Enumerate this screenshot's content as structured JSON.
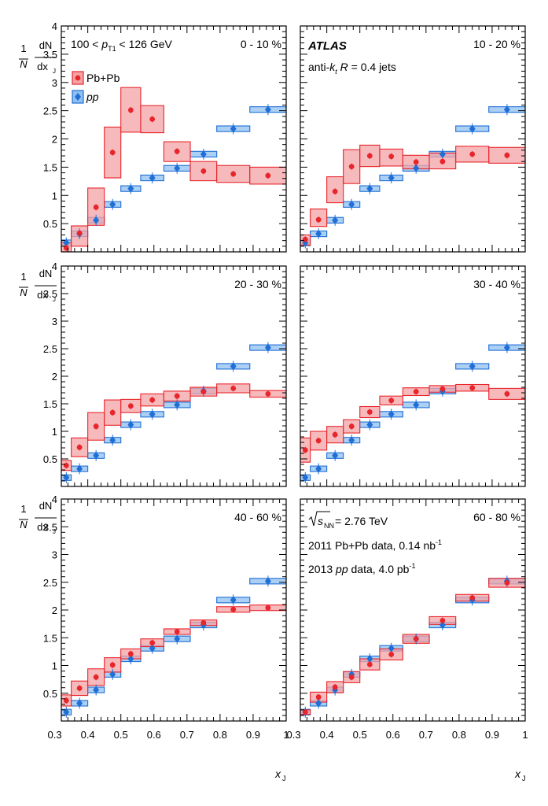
{
  "figure": {
    "ylabel": {
      "one": "1",
      "N": "N",
      "dN": "dN",
      "dx": "dx",
      "sub": "J"
    },
    "xlabel": {
      "x": "x",
      "sub": "J"
    },
    "legend": {
      "pbpb": "Pb+Pb",
      "pp": "pp"
    },
    "kinematic_label": {
      "pre": "100 < ",
      "p": "p",
      "sub": "T1",
      "post": " < 126 GeV"
    },
    "atlas_label": "ATLAS",
    "jet_label": {
      "pre": "anti-",
      "k": "k",
      "ksub": "t",
      "R": "R",
      "post": " = 0.4 jets"
    },
    "energy_label": {
      "s": "s",
      "sub": "NN",
      "post": " = 2.76 TeV"
    },
    "pbpb_data_label": {
      "text": "2011 Pb+Pb data, 0.14 nb",
      "sup": "-1"
    },
    "pp_data_label": {
      "pre": "2013 ",
      "pp": "pp",
      "post": " data, 4.0 pb",
      "sup": "-1"
    }
  },
  "colors": {
    "pbpb": "#e8252b",
    "pbpb_fill": "#f4a3a6",
    "pp": "#1f6fd6",
    "pp_fill": "#8fc0f0"
  },
  "chart_data": {
    "type": "scatter",
    "xlabel": "x_J",
    "ylabel": "(1/N) dN/dx_J",
    "xlim": [
      0.32,
      1.0
    ],
    "ylim": [
      0,
      4
    ],
    "xticks": [
      "0.3",
      "0.4",
      "0.5",
      "0.6",
      "0.7",
      "0.8",
      "0.9",
      "1"
    ],
    "yticks": [
      "0.5",
      "1",
      "1.5",
      "2",
      "2.5",
      "3",
      "3.5",
      "4"
    ],
    "bins": [
      [
        0.32,
        0.35
      ],
      [
        0.35,
        0.4
      ],
      [
        0.4,
        0.45
      ],
      [
        0.45,
        0.5
      ],
      [
        0.5,
        0.56
      ],
      [
        0.56,
        0.63
      ],
      [
        0.63,
        0.71
      ],
      [
        0.71,
        0.79
      ],
      [
        0.79,
        0.89
      ],
      [
        0.89,
        1.0
      ]
    ],
    "x_centers": [
      0.335,
      0.375,
      0.425,
      0.475,
      0.53,
      0.595,
      0.67,
      0.75,
      0.84,
      0.945
    ],
    "pp": {
      "name": "pp",
      "values": [
        0.16,
        0.32,
        0.56,
        0.84,
        1.12,
        1.31,
        1.48,
        1.73,
        2.18,
        2.52
      ],
      "syst": [
        0.05,
        0.05,
        0.05,
        0.05,
        0.05,
        0.05,
        0.05,
        0.05,
        0.05,
        0.05
      ]
    },
    "panels": [
      {
        "centrality": "0 - 10 %",
        "series": [
          {
            "name": "Pb+Pb",
            "values": [
              0.07,
              0.33,
              0.79,
              1.76,
              2.51,
              2.35,
              1.78,
              1.43,
              1.38,
              1.35
            ],
            "syst_low": [
              0.0,
              0.1,
              0.47,
              1.31,
              2.12,
              2.11,
              1.6,
              1.26,
              1.23,
              1.2
            ],
            "syst_high": [
              0.16,
              0.46,
              1.13,
              2.21,
              2.91,
              2.59,
              1.95,
              1.6,
              1.53,
              1.5
            ]
          }
        ]
      },
      {
        "centrality": "10 - 20 %",
        "series": [
          {
            "name": "Pb+Pb",
            "values": [
              0.22,
              0.57,
              1.07,
              1.51,
              1.7,
              1.69,
              1.59,
              1.6,
              1.73,
              1.71
            ],
            "syst_low": [
              0.12,
              0.45,
              0.87,
              1.21,
              1.51,
              1.52,
              1.47,
              1.47,
              1.59,
              1.57
            ],
            "syst_high": [
              0.3,
              0.76,
              1.33,
              1.81,
              1.89,
              1.82,
              1.71,
              1.75,
              1.87,
              1.85
            ]
          }
        ]
      },
      {
        "centrality": "20 - 30 %",
        "series": [
          {
            "name": "Pb+Pb",
            "values": [
              0.38,
              0.71,
              1.09,
              1.34,
              1.46,
              1.57,
              1.64,
              1.72,
              1.78,
              1.68
            ],
            "syst_low": [
              0.29,
              0.54,
              0.84,
              1.11,
              1.34,
              1.46,
              1.55,
              1.64,
              1.7,
              1.62
            ],
            "syst_high": [
              0.47,
              0.88,
              1.34,
              1.57,
              1.58,
              1.68,
              1.73,
              1.8,
              1.86,
              1.74
            ]
          }
        ]
      },
      {
        "centrality": "30 - 40 %",
        "series": [
          {
            "name": "Pb+Pb",
            "values": [
              0.66,
              0.83,
              0.94,
              1.09,
              1.35,
              1.56,
              1.72,
              1.77,
              1.79,
              1.68
            ],
            "syst_low": [
              0.44,
              0.66,
              0.79,
              0.97,
              1.25,
              1.48,
              1.65,
              1.71,
              1.73,
              1.58
            ],
            "syst_high": [
              0.88,
              1.0,
              1.09,
              1.21,
              1.45,
              1.64,
              1.79,
              1.83,
              1.85,
              1.78
            ]
          }
        ]
      },
      {
        "centrality": "40 - 60 %",
        "series": [
          {
            "name": "Pb+Pb",
            "values": [
              0.37,
              0.59,
              0.79,
              1.01,
              1.21,
              1.41,
              1.61,
              1.77,
              2.01,
              2.04
            ],
            "syst_low": [
              0.27,
              0.46,
              0.64,
              0.88,
              1.12,
              1.34,
              1.56,
              1.72,
              1.96,
              1.99
            ],
            "syst_high": [
              0.47,
              0.72,
              0.94,
              1.14,
              1.3,
              1.48,
              1.66,
              1.82,
              2.06,
              2.09
            ]
          }
        ]
      },
      {
        "centrality": "60 - 80 %",
        "series": [
          {
            "name": "Pb+Pb",
            "values": [
              0.16,
              0.43,
              0.61,
              0.79,
              1.02,
              1.2,
              1.48,
              1.81,
              2.22,
              2.49
            ],
            "syst_low": [
              0.12,
              0.34,
              0.51,
              0.69,
              0.92,
              1.1,
              1.4,
              1.74,
              2.16,
              2.41
            ],
            "syst_high": [
              0.2,
              0.52,
              0.71,
              0.89,
              1.12,
              1.3,
              1.56,
              1.88,
              2.28,
              2.57
            ]
          }
        ]
      }
    ]
  }
}
